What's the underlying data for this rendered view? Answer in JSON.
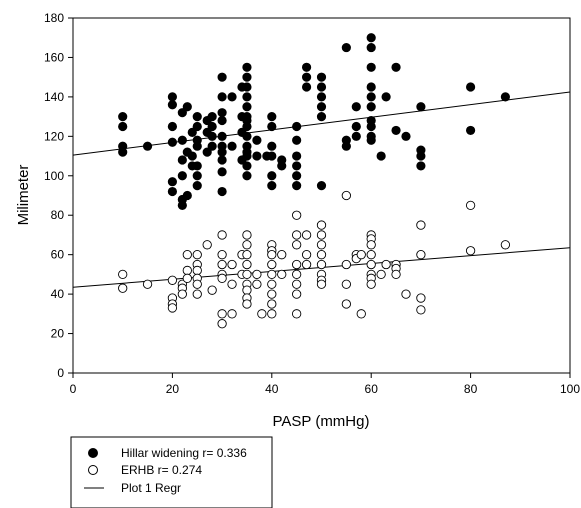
{
  "chart_data": {
    "type": "scatter",
    "xlabel": "PASP (mmHg)",
    "ylabel": "Milimeter",
    "xlim": [
      0,
      100
    ],
    "ylim": [
      0,
      180
    ],
    "x_ticks": [
      "0",
      "20",
      "40",
      "60",
      "80",
      "100"
    ],
    "y_ticks": [
      "0",
      "20",
      "40",
      "60",
      "80",
      "100",
      "120",
      "140",
      "160",
      "180"
    ],
    "grid": false,
    "legend_position": "bottom-left, below plot",
    "series": [
      {
        "name": "Hillar widening r= 0.336",
        "marker": "filled-circle",
        "color": "#000000",
        "points": [
          [
            10,
            130
          ],
          [
            10,
            125
          ],
          [
            10,
            115
          ],
          [
            10,
            112
          ],
          [
            15,
            115
          ],
          [
            20,
            140
          ],
          [
            20,
            136
          ],
          [
            20,
            125
          ],
          [
            20,
            117
          ],
          [
            20,
            97
          ],
          [
            20,
            92
          ],
          [
            22,
            132
          ],
          [
            22,
            118
          ],
          [
            22,
            108
          ],
          [
            22,
            100
          ],
          [
            22,
            88
          ],
          [
            22,
            85
          ],
          [
            23,
            135
          ],
          [
            23,
            112
          ],
          [
            23,
            90
          ],
          [
            24,
            122
          ],
          [
            24,
            110
          ],
          [
            24,
            105
          ],
          [
            25,
            130
          ],
          [
            25,
            125
          ],
          [
            25,
            118
          ],
          [
            25,
            115
          ],
          [
            25,
            105
          ],
          [
            25,
            100
          ],
          [
            25,
            95
          ],
          [
            27,
            128
          ],
          [
            27,
            122
          ],
          [
            27,
            112
          ],
          [
            28,
            130
          ],
          [
            28,
            125
          ],
          [
            28,
            120
          ],
          [
            28,
            115
          ],
          [
            30,
            150
          ],
          [
            30,
            140
          ],
          [
            30,
            132
          ],
          [
            30,
            128
          ],
          [
            30,
            120
          ],
          [
            30,
            115
          ],
          [
            30,
            112
          ],
          [
            30,
            108
          ],
          [
            30,
            102
          ],
          [
            30,
            92
          ],
          [
            32,
            140
          ],
          [
            32,
            115
          ],
          [
            34,
            145
          ],
          [
            34,
            130
          ],
          [
            34,
            122
          ],
          [
            34,
            108
          ],
          [
            35,
            155
          ],
          [
            35,
            150
          ],
          [
            35,
            145
          ],
          [
            35,
            140
          ],
          [
            35,
            135
          ],
          [
            35,
            130
          ],
          [
            35,
            128
          ],
          [
            35,
            125
          ],
          [
            35,
            120
          ],
          [
            35,
            115
          ],
          [
            35,
            112
          ],
          [
            35,
            110
          ],
          [
            35,
            105
          ],
          [
            35,
            100
          ],
          [
            37,
            118
          ],
          [
            37,
            110
          ],
          [
            39,
            110
          ],
          [
            40,
            130
          ],
          [
            40,
            125
          ],
          [
            40,
            115
          ],
          [
            40,
            110
          ],
          [
            40,
            100
          ],
          [
            40,
            95
          ],
          [
            42,
            108
          ],
          [
            42,
            105
          ],
          [
            45,
            125
          ],
          [
            45,
            118
          ],
          [
            45,
            110
          ],
          [
            45,
            105
          ],
          [
            45,
            100
          ],
          [
            45,
            95
          ],
          [
            47,
            155
          ],
          [
            47,
            150
          ],
          [
            47,
            145
          ],
          [
            50,
            150
          ],
          [
            50,
            145
          ],
          [
            50,
            140
          ],
          [
            50,
            135
          ],
          [
            50,
            130
          ],
          [
            50,
            95
          ],
          [
            55,
            165
          ],
          [
            55,
            118
          ],
          [
            55,
            115
          ],
          [
            57,
            135
          ],
          [
            57,
            125
          ],
          [
            57,
            120
          ],
          [
            60,
            170
          ],
          [
            60,
            165
          ],
          [
            60,
            155
          ],
          [
            60,
            145
          ],
          [
            60,
            140
          ],
          [
            60,
            135
          ],
          [
            60,
            128
          ],
          [
            60,
            125
          ],
          [
            60,
            120
          ],
          [
            60,
            118
          ],
          [
            62,
            110
          ],
          [
            63,
            140
          ],
          [
            65,
            155
          ],
          [
            65,
            123
          ],
          [
            67,
            120
          ],
          [
            70,
            135
          ],
          [
            70,
            113
          ],
          [
            70,
            110
          ],
          [
            70,
            105
          ],
          [
            80,
            145
          ],
          [
            80,
            123
          ],
          [
            87,
            140
          ]
        ]
      },
      {
        "name": "ERHB r= 0.274",
        "marker": "open-circle",
        "color": "#000000",
        "points": [
          [
            10,
            50
          ],
          [
            10,
            43
          ],
          [
            15,
            45
          ],
          [
            20,
            47
          ],
          [
            20,
            38
          ],
          [
            20,
            35
          ],
          [
            20,
            33
          ],
          [
            22,
            45
          ],
          [
            22,
            43
          ],
          [
            22,
            40
          ],
          [
            23,
            60
          ],
          [
            23,
            52
          ],
          [
            23,
            48
          ],
          [
            25,
            60
          ],
          [
            25,
            55
          ],
          [
            25,
            52
          ],
          [
            25,
            48
          ],
          [
            25,
            45
          ],
          [
            25,
            40
          ],
          [
            27,
            65
          ],
          [
            28,
            42
          ],
          [
            30,
            70
          ],
          [
            30,
            60
          ],
          [
            30,
            55
          ],
          [
            30,
            50
          ],
          [
            30,
            48
          ],
          [
            30,
            30
          ],
          [
            30,
            25
          ],
          [
            32,
            55
          ],
          [
            32,
            45
          ],
          [
            32,
            30
          ],
          [
            34,
            60
          ],
          [
            34,
            50
          ],
          [
            35,
            70
          ],
          [
            35,
            65
          ],
          [
            35,
            60
          ],
          [
            35,
            55
          ],
          [
            35,
            50
          ],
          [
            35,
            45
          ],
          [
            35,
            42
          ],
          [
            35,
            38
          ],
          [
            35,
            35
          ],
          [
            37,
            50
          ],
          [
            37,
            45
          ],
          [
            38,
            30
          ],
          [
            40,
            65
          ],
          [
            40,
            62
          ],
          [
            40,
            60
          ],
          [
            40,
            55
          ],
          [
            40,
            50
          ],
          [
            40,
            45
          ],
          [
            40,
            40
          ],
          [
            40,
            35
          ],
          [
            40,
            30
          ],
          [
            42,
            60
          ],
          [
            42,
            50
          ],
          [
            45,
            80
          ],
          [
            45,
            70
          ],
          [
            45,
            65
          ],
          [
            45,
            55
          ],
          [
            45,
            50
          ],
          [
            45,
            45
          ],
          [
            45,
            40
          ],
          [
            45,
            30
          ],
          [
            47,
            70
          ],
          [
            47,
            60
          ],
          [
            47,
            55
          ],
          [
            50,
            75
          ],
          [
            50,
            70
          ],
          [
            50,
            65
          ],
          [
            50,
            60
          ],
          [
            50,
            55
          ],
          [
            50,
            50
          ],
          [
            50,
            47
          ],
          [
            50,
            45
          ],
          [
            55,
            90
          ],
          [
            55,
            55
          ],
          [
            55,
            45
          ],
          [
            55,
            35
          ],
          [
            57,
            60
          ],
          [
            57,
            58
          ],
          [
            58,
            60
          ],
          [
            58,
            30
          ],
          [
            60,
            70
          ],
          [
            60,
            68
          ],
          [
            60,
            65
          ],
          [
            60,
            60
          ],
          [
            60,
            55
          ],
          [
            60,
            50
          ],
          [
            60,
            48
          ],
          [
            60,
            45
          ],
          [
            62,
            50
          ],
          [
            63,
            55
          ],
          [
            65,
            55
          ],
          [
            65,
            53
          ],
          [
            65,
            50
          ],
          [
            67,
            40
          ],
          [
            70,
            75
          ],
          [
            70,
            60
          ],
          [
            70,
            38
          ],
          [
            70,
            32
          ],
          [
            80,
            85
          ],
          [
            80,
            62
          ],
          [
            87,
            65
          ]
        ]
      },
      {
        "name": "Plot 1 Regr",
        "marker": "line",
        "color": "#000000",
        "lines": [
          {
            "x": [
              0,
              100
            ],
            "y": [
              110.5,
              142.5
            ]
          },
          {
            "x": [
              0,
              100
            ],
            "y": [
              43.5,
              63.5
            ]
          }
        ]
      }
    ]
  }
}
